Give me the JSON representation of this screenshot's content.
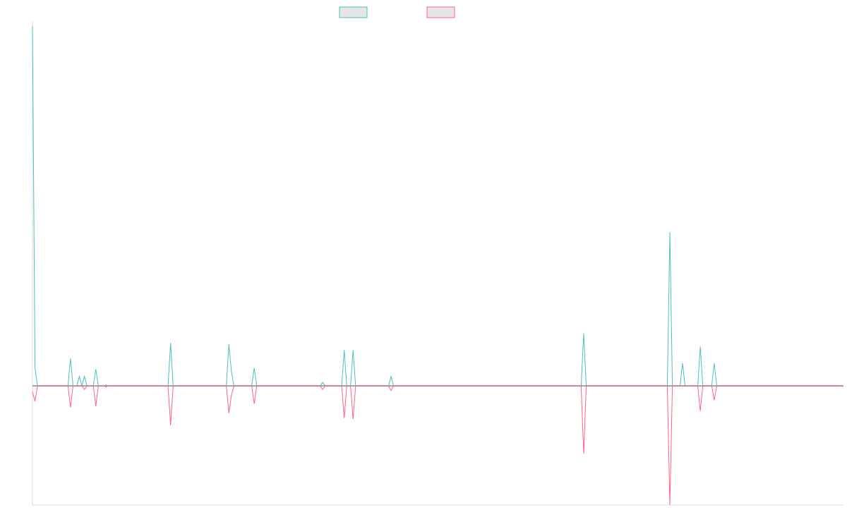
{
  "chart_data": {
    "type": "line",
    "title": "",
    "xlabel": "",
    "ylabel": "",
    "legend_position": "top-center",
    "grid": false,
    "ylim": [
      -100,
      302
    ],
    "x_count": 129,
    "series": [
      {
        "color": "#4bc0c0",
        "points": [
          [
            0,
            302
          ],
          [
            0.4,
            15
          ],
          [
            0.8,
            0
          ],
          [
            5.6,
            0
          ],
          [
            6,
            23
          ],
          [
            6.4,
            0
          ],
          [
            7,
            0
          ],
          [
            7.4,
            8
          ],
          [
            7.8,
            0
          ],
          [
            8.2,
            8
          ],
          [
            8.6,
            0
          ],
          [
            9.6,
            0
          ],
          [
            10,
            14
          ],
          [
            10.4,
            0
          ],
          [
            11.4,
            0
          ],
          [
            11.6,
            1
          ],
          [
            11.8,
            0
          ],
          [
            18.4,
            0
          ],
          [
            18.6,
            0.5
          ],
          [
            18.8,
            0
          ],
          [
            21.4,
            0
          ],
          [
            21.8,
            36
          ],
          [
            22.2,
            0
          ],
          [
            30.6,
            0
          ],
          [
            31,
            35
          ],
          [
            31.4,
            12
          ],
          [
            31.8,
            0
          ],
          [
            34.6,
            0
          ],
          [
            35,
            15
          ],
          [
            35.4,
            0
          ],
          [
            45.4,
            0
          ],
          [
            45.8,
            3
          ],
          [
            46.2,
            0
          ],
          [
            48.8,
            0
          ],
          [
            49.2,
            30
          ],
          [
            49.6,
            0
          ],
          [
            50.2,
            0
          ],
          [
            50.6,
            30
          ],
          [
            51,
            0
          ],
          [
            56.2,
            0
          ],
          [
            56.6,
            8
          ],
          [
            57,
            0
          ],
          [
            86.6,
            0
          ],
          [
            87,
            44
          ],
          [
            87.4,
            0
          ],
          [
            100.2,
            0
          ],
          [
            100.6,
            129
          ],
          [
            101,
            0
          ],
          [
            102.2,
            0
          ],
          [
            102.6,
            19
          ],
          [
            103,
            0
          ],
          [
            105,
            0
          ],
          [
            105.4,
            33
          ],
          [
            105.8,
            0
          ],
          [
            107.2,
            0
          ],
          [
            107.6,
            19
          ],
          [
            108,
            0
          ],
          [
            128,
            0
          ]
        ]
      },
      {
        "color": "#ff6384",
        "points": [
          [
            0,
            -5
          ],
          [
            0.4,
            -13
          ],
          [
            0.8,
            0
          ],
          [
            5.6,
            0
          ],
          [
            6,
            -18
          ],
          [
            6.4,
            0
          ],
          [
            7.8,
            0
          ],
          [
            8.2,
            -3
          ],
          [
            8.6,
            0
          ],
          [
            9.6,
            0
          ],
          [
            10,
            -17
          ],
          [
            10.4,
            0
          ],
          [
            11.4,
            0
          ],
          [
            11.6,
            -1
          ],
          [
            11.8,
            0
          ],
          [
            20.8,
            0
          ],
          [
            21,
            -0.5
          ],
          [
            21.2,
            0
          ],
          [
            21.4,
            0
          ],
          [
            21.8,
            -33
          ],
          [
            22.2,
            0
          ],
          [
            30.6,
            0
          ],
          [
            31,
            -23
          ],
          [
            31.4,
            -8
          ],
          [
            31.8,
            0
          ],
          [
            34.6,
            0
          ],
          [
            35,
            -15
          ],
          [
            35.4,
            0
          ],
          [
            45.4,
            0
          ],
          [
            45.8,
            -3
          ],
          [
            46.2,
            0
          ],
          [
            48.8,
            0
          ],
          [
            49.2,
            -27
          ],
          [
            49.6,
            0
          ],
          [
            50.2,
            0
          ],
          [
            50.6,
            -28
          ],
          [
            51,
            0
          ],
          [
            56.2,
            0
          ],
          [
            56.6,
            -4
          ],
          [
            57,
            0
          ],
          [
            86.6,
            0
          ],
          [
            87,
            -57
          ],
          [
            87.4,
            0
          ],
          [
            100.2,
            0
          ],
          [
            100.6,
            -100
          ],
          [
            101,
            0
          ],
          [
            105,
            0
          ],
          [
            105.4,
            -21
          ],
          [
            105.8,
            0
          ],
          [
            107.2,
            0
          ],
          [
            107.6,
            -12
          ],
          [
            108,
            0
          ],
          [
            128,
            0
          ]
        ]
      }
    ]
  }
}
